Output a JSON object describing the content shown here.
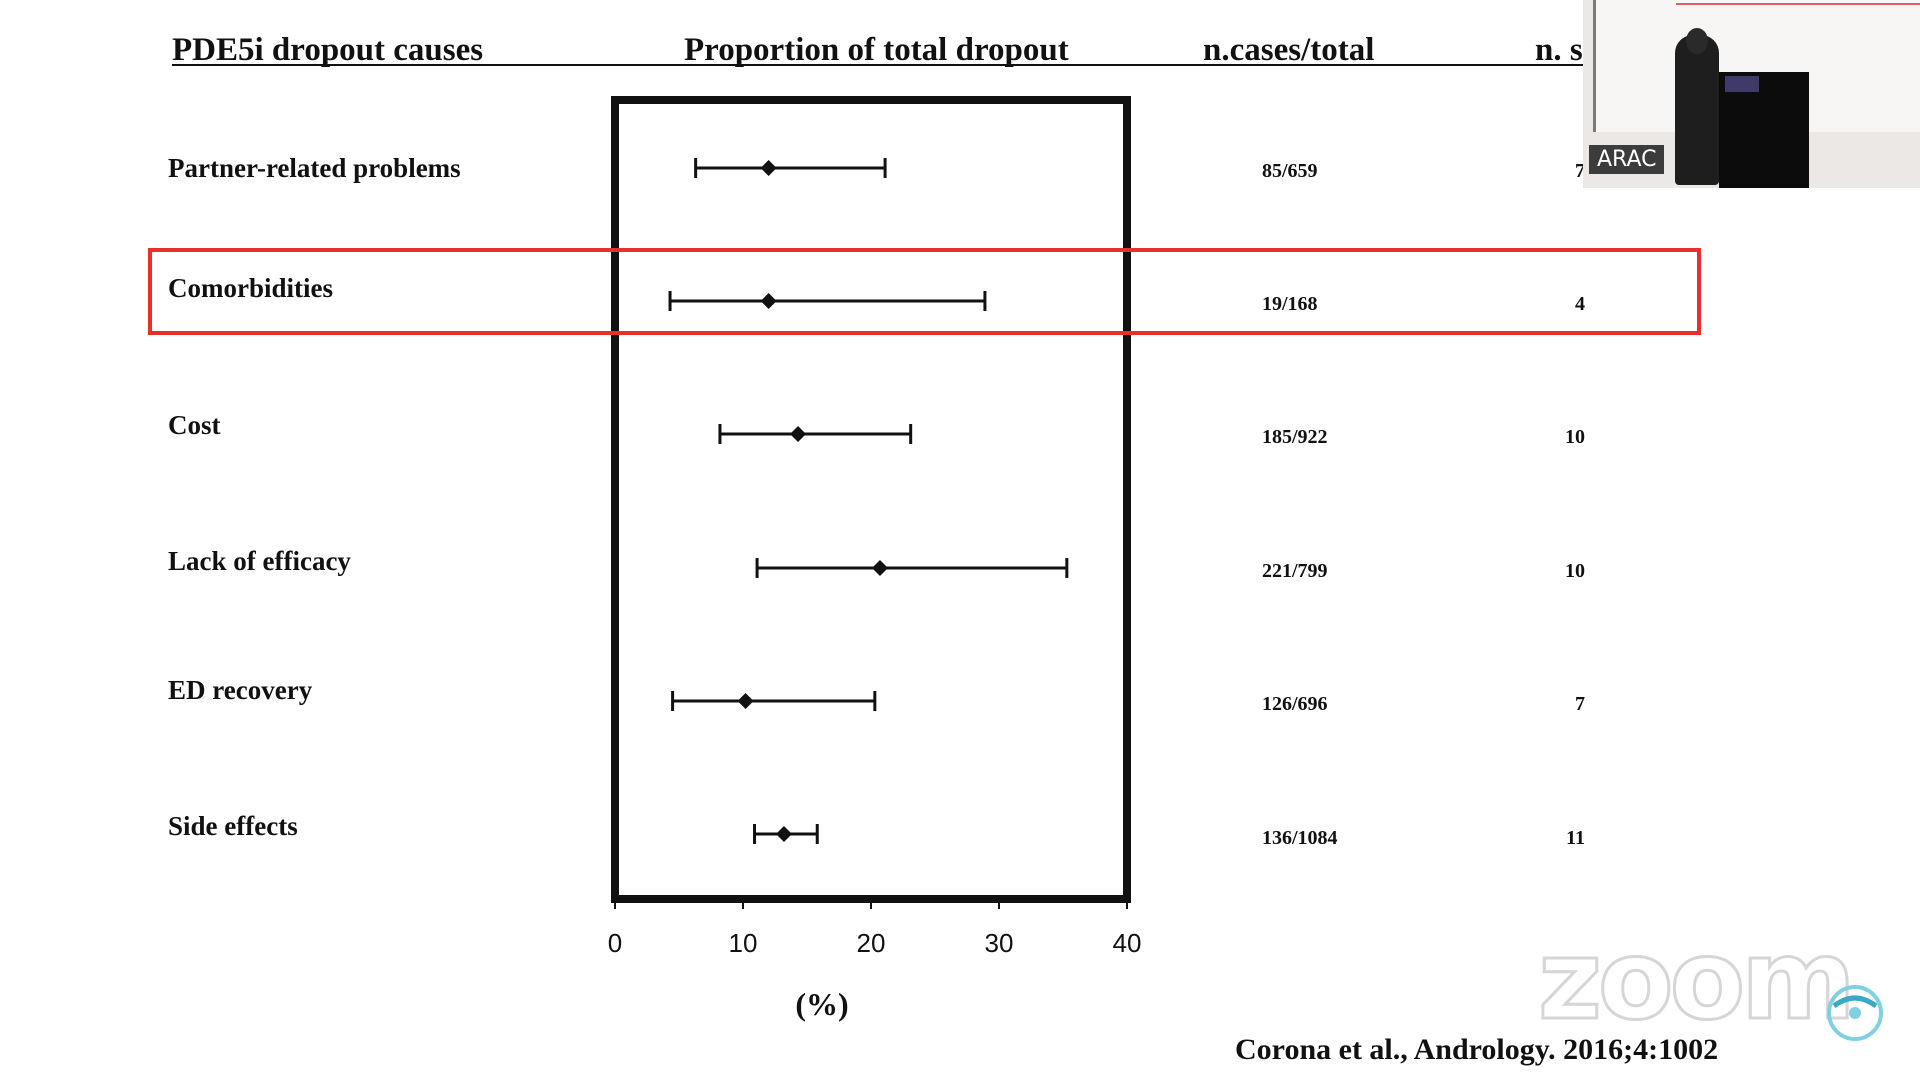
{
  "headers": {
    "causes": "PDE5i dropout causes",
    "proportion": "Proportion of total dropout",
    "cases": "n.cases/total",
    "studies": "n. s"
  },
  "highlight_color": "#e8302a",
  "chart_data": {
    "type": "forest",
    "xlabel": "(%)",
    "xlim": [
      0,
      40
    ],
    "xticks": [
      0,
      10,
      20,
      30,
      40
    ],
    "xtick_labels": [
      "0",
      "10",
      "20",
      "30",
      "40"
    ],
    "rows": [
      {
        "label": "Partner-related problems",
        "estimate": 12,
        "lower": 6.3,
        "upper": 21.1,
        "cases": "85/659",
        "studies": "7"
      },
      {
        "label": "Comorbidities",
        "estimate": 12,
        "lower": 4.3,
        "upper": 28.9,
        "cases": "19/168",
        "studies": "4",
        "highlighted": true
      },
      {
        "label": "Cost",
        "estimate": 14.3,
        "lower": 8.2,
        "upper": 23.1,
        "cases": "185/922",
        "studies": "10"
      },
      {
        "label": "Lack of efficacy",
        "estimate": 20.7,
        "lower": 11.1,
        "upper": 35.3,
        "cases": "221/799",
        "studies": "10"
      },
      {
        "label": "ED recovery",
        "estimate": 10.2,
        "lower": 4.5,
        "upper": 20.3,
        "cases": "126/696",
        "studies": "7"
      },
      {
        "label": "Side effects",
        "estimate": 13.2,
        "lower": 10.9,
        "upper": 15.8,
        "cases": "136/1084",
        "studies": "11"
      }
    ]
  },
  "citation": "Corona et al., Andrology. 2016;4:1002",
  "video_overlay": {
    "name_label": "ARAC",
    "watermark": "zoom"
  }
}
